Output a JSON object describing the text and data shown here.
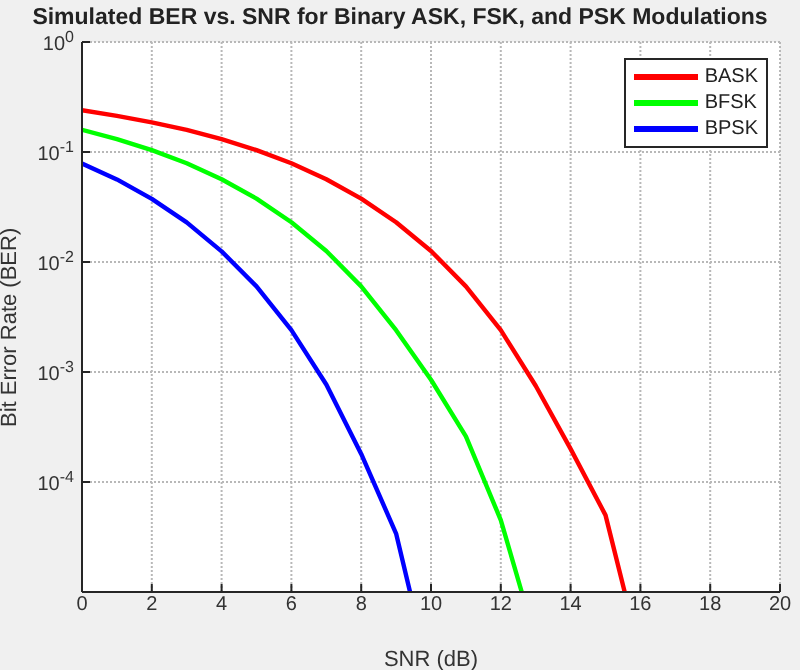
{
  "chart_data": {
    "type": "line",
    "title": "Simulated BER vs. SNR for Binary ASK, FSK, and PSK Modulations",
    "xlabel": "SNR (dB)",
    "ylabel": "Bit Error Rate (BER)",
    "log": "y",
    "grid": true,
    "legend": "top right",
    "line_style": "solid",
    "marker": "none",
    "xlim": [
      0,
      20
    ],
    "xticks": [
      0,
      2,
      4,
      6,
      8,
      10,
      12,
      14,
      16,
      18,
      20
    ],
    "ylim": [
      1e-05,
      1
    ],
    "yticks": [
      {
        "value": 1e-05,
        "label": null
      },
      {
        "value": 0.0001,
        "label": "10$^{-4}$"
      },
      {
        "value": 0.001,
        "label": "10$^{-3}$"
      },
      {
        "value": 0.01,
        "label": "10$^{-2}$"
      },
      {
        "value": 0.1,
        "label": "10$^{-1}$"
      },
      {
        "value": 1,
        "label": "10$^{0}$"
      }
    ],
    "series": [
      {
        "name": "BASK",
        "color": "#ff0000",
        "x": [
          0,
          1,
          2,
          3,
          4,
          5,
          6,
          7,
          8,
          9,
          10,
          11,
          12,
          13,
          14,
          15,
          15.55
        ],
        "values": [
          0.24,
          0.213,
          0.186,
          0.159,
          0.131,
          0.104,
          0.079,
          0.0565,
          0.0377,
          0.023,
          0.0126,
          0.006,
          0.0024,
          0.00075,
          0.0002,
          5e-05,
          1e-05
        ]
      },
      {
        "name": "BFSK",
        "color": "#00ff00",
        "x": [
          0,
          1,
          2,
          3,
          4,
          5,
          6,
          7,
          8,
          9,
          10,
          11,
          12,
          12.6
        ],
        "values": [
          0.159,
          0.131,
          0.104,
          0.079,
          0.0565,
          0.0377,
          0.023,
          0.0126,
          0.006,
          0.0024,
          0.00085,
          0.00026,
          4.5e-05,
          1e-05
        ]
      },
      {
        "name": "BPSK",
        "color": "#0000ff",
        "x": [
          0,
          1,
          2,
          3,
          4,
          5,
          6,
          7,
          8,
          9,
          9.4
        ],
        "values": [
          0.0786,
          0.0563,
          0.0375,
          0.0229,
          0.0125,
          0.006,
          0.0024,
          0.00077,
          0.00018,
          3.4e-05,
          1e-05
        ]
      }
    ]
  }
}
